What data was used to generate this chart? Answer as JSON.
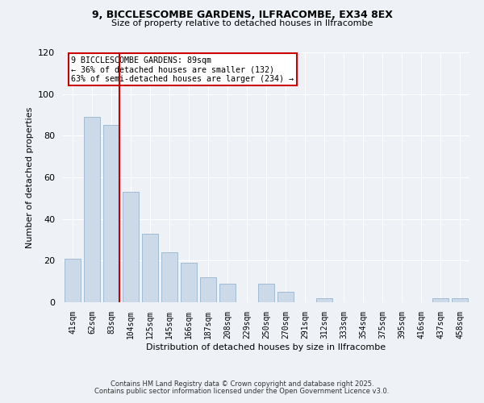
{
  "title1": "9, BICCLESCOMBE GARDENS, ILFRACOMBE, EX34 8EX",
  "title2": "Size of property relative to detached houses in Ilfracombe",
  "xlabel": "Distribution of detached houses by size in Ilfracombe",
  "ylabel": "Number of detached properties",
  "categories": [
    "41sqm",
    "62sqm",
    "83sqm",
    "104sqm",
    "125sqm",
    "145sqm",
    "166sqm",
    "187sqm",
    "208sqm",
    "229sqm",
    "250sqm",
    "270sqm",
    "291sqm",
    "312sqm",
    "333sqm",
    "354sqm",
    "375sqm",
    "395sqm",
    "416sqm",
    "437sqm",
    "458sqm"
  ],
  "values": [
    21,
    89,
    85,
    53,
    33,
    24,
    19,
    12,
    9,
    0,
    9,
    5,
    0,
    2,
    0,
    0,
    0,
    0,
    0,
    2,
    2
  ],
  "bar_color": "#ccd9e8",
  "bar_edge_color": "#9ab5cc",
  "vline_x_idx": 2,
  "vline_color": "#cc0000",
  "annotation_title": "9 BICCLESCOMBE GARDENS: 89sqm",
  "annotation_line2": "← 36% of detached houses are smaller (132)",
  "annotation_line3": "63% of semi-detached houses are larger (234) →",
  "annotation_box_edgecolor": "#cc0000",
  "ylim": [
    0,
    120
  ],
  "yticks": [
    0,
    20,
    40,
    60,
    80,
    100,
    120
  ],
  "background_color": "#eef2f7",
  "grid_color": "#ffffff",
  "footer1": "Contains HM Land Registry data © Crown copyright and database right 2025.",
  "footer2": "Contains public sector information licensed under the Open Government Licence v3.0."
}
